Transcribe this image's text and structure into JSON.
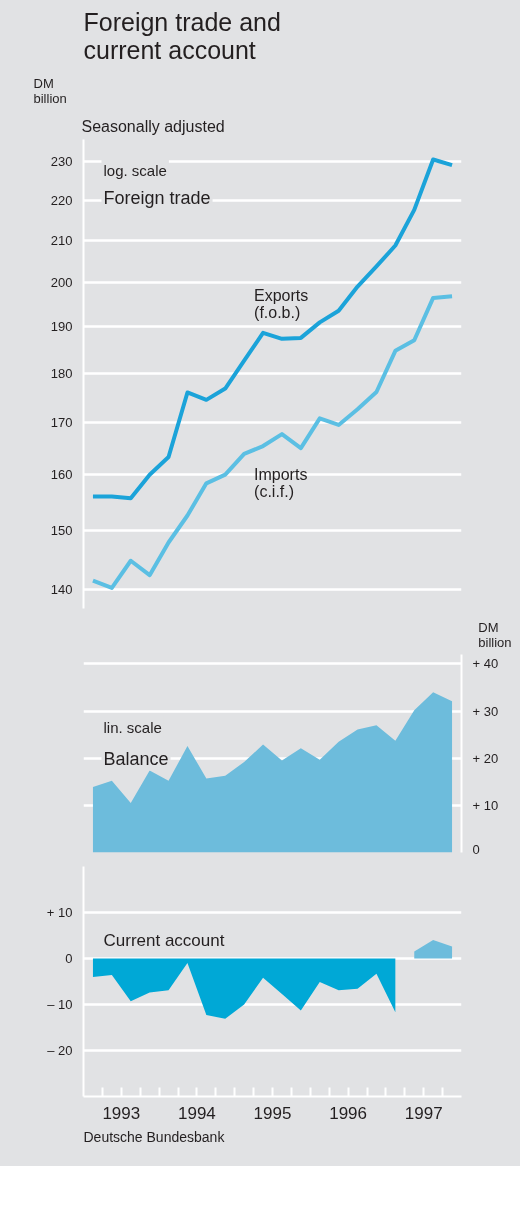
{
  "chart_data": [
    {
      "type": "line",
      "title": "Foreign trade and current account",
      "subtitle": "Seasonally adjusted",
      "ylabel": "DM billion",
      "log": "y",
      "grid": "y",
      "legend": false,
      "tick_labels": "y",
      "annotations": [
        "log. scale",
        "Foreign trade"
      ],
      "x": [
        1993.125,
        1993.375,
        1993.625,
        1993.875,
        1994.125,
        1994.375,
        1994.625,
        1994.875,
        1995.125,
        1995.375,
        1995.625,
        1995.875,
        1996.125,
        1996.375,
        1996.625,
        1996.875,
        1997.125,
        1997.375,
        1997.625,
        1997.875
      ],
      "xlim": [
        1993,
        1998
      ],
      "ylim": [
        137,
        236
      ],
      "yticks": [
        140,
        150,
        160,
        170,
        180,
        190,
        200,
        210,
        220,
        230
      ],
      "series": [
        {
          "name": "Exports (f.o.b.)",
          "color": "#1ba3d9",
          "values": [
            156,
            156,
            155.7,
            160,
            163.3,
            176,
            174.5,
            176.8,
            182.6,
            188.6,
            187.3,
            187.5,
            190.9,
            193.5,
            199,
            203.7,
            208.7,
            217.5,
            230.6,
            229.1
          ]
        },
        {
          "name": "Imports (c.i.f.)",
          "color": "#5bbfe3",
          "values": [
            141.5,
            140.3,
            144.8,
            142.4,
            147.9,
            152.6,
            158.4,
            160,
            163.9,
            165.4,
            167.7,
            165,
            170.8,
            169.5,
            172.6,
            176.1,
            184.7,
            187,
            196.4,
            196.8
          ]
        }
      ]
    },
    {
      "type": "area",
      "y2label": "DM billion",
      "grid": "y",
      "legend": false,
      "tick_labels": "y",
      "annotations": [
        "lin. scale",
        "Balance"
      ],
      "x": [
        1993.125,
        1993.375,
        1993.625,
        1993.875,
        1994.125,
        1994.375,
        1994.625,
        1994.875,
        1995.125,
        1995.375,
        1995.625,
        1995.875,
        1996.125,
        1996.375,
        1996.625,
        1996.875,
        1997.125,
        1997.375,
        1997.625,
        1997.875
      ],
      "xlim": [
        1993,
        1998
      ],
      "y2lim": [
        0,
        42
      ],
      "y2ticks": [
        0,
        {
          "value": 10,
          "label": "+ 10"
        },
        {
          "value": 20,
          "label": "+ 20"
        },
        {
          "value": 30,
          "label": "+ 30"
        },
        {
          "value": 40,
          "label": "+ 40"
        }
      ],
      "series": [
        {
          "color": "#6dbcdc",
          "axis": "y2",
          "values": [
            13.9,
            15.2,
            10.5,
            17.4,
            15.2,
            22.6,
            15.7,
            16.3,
            19.2,
            22.9,
            19.5,
            22.1,
            19.7,
            23.5,
            26.1,
            27,
            23.7,
            30.2,
            34,
            32.1
          ]
        }
      ]
    },
    {
      "type": "area",
      "grid": "y",
      "legend": false,
      "annotations": [
        "Current account",
        "Deutsche Bundesbank"
      ],
      "x": [
        1993.125,
        1993.375,
        1993.625,
        1993.875,
        1994.125,
        1994.375,
        1994.625,
        1994.875,
        1995.125,
        1995.375,
        1995.625,
        1995.875,
        1996.125,
        1996.375,
        1996.625,
        1996.875,
        1997.125,
        1997.375,
        1997.625,
        1997.875
      ],
      "xlim": [
        1993,
        1998
      ],
      "ylim": [
        -30,
        20
      ],
      "yticks": [
        {
          "value": -20,
          "label": "– 20"
        },
        {
          "value": -10,
          "label": "– 10"
        },
        0,
        {
          "value": 10,
          "label": "+ 10"
        }
      ],
      "xticks": [
        {
          "value": 1993.25,
          "label": null
        },
        {
          "value": 1993.5,
          "label": "1993"
        },
        {
          "value": 1993.75,
          "label": null
        },
        {
          "value": 1994,
          "label": null
        },
        {
          "value": 1994.25,
          "label": null
        },
        {
          "value": 1994.5,
          "label": "1994"
        },
        {
          "value": 1994.75,
          "label": null
        },
        {
          "value": 1995,
          "label": null
        },
        {
          "value": 1995.25,
          "label": null
        },
        {
          "value": 1995.5,
          "label": "1995"
        },
        {
          "value": 1995.75,
          "label": null
        },
        {
          "value": 1996,
          "label": null
        },
        {
          "value": 1996.25,
          "label": null
        },
        {
          "value": 1996.5,
          "label": "1996"
        },
        {
          "value": 1996.75,
          "label": null
        },
        {
          "value": 1997,
          "label": null
        },
        {
          "value": 1997.25,
          "label": null
        },
        {
          "value": 1997.5,
          "label": "1997"
        },
        {
          "value": 1997.75,
          "label": null
        }
      ],
      "series": [
        {
          "color": "#00a8d6",
          "values": [
            -4,
            -3.6,
            -9.3,
            -7.4,
            -6.9,
            -1,
            -12.3,
            -13.1,
            -10,
            -4.2,
            -7.7,
            -11.3,
            -5.1,
            -6.9,
            -6.6,
            -3.3,
            -11.7,
            null,
            null,
            null
          ]
        },
        {
          "color": "#6dbcdc",
          "values": [
            null,
            null,
            null,
            null,
            null,
            null,
            null,
            null,
            null,
            null,
            null,
            null,
            null,
            null,
            null,
            null,
            null,
            1.5,
            4,
            2.6
          ]
        }
      ]
    }
  ]
}
